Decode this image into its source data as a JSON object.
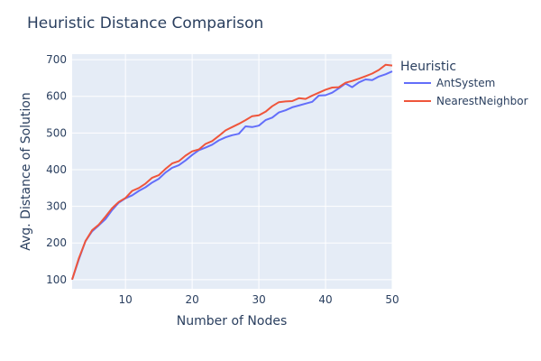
{
  "chart_data": {
    "type": "line",
    "title": "Heuristic Distance Comparison",
    "xlabel": "Number of Nodes",
    "ylabel": "Avg. Distance of Solution",
    "xlim": [
      2,
      50
    ],
    "ylim": [
      75,
      715
    ],
    "x_ticks": [
      10,
      20,
      30,
      40,
      50
    ],
    "y_ticks": [
      100,
      200,
      300,
      400,
      500,
      600,
      700
    ],
    "grid": true,
    "legend_title": "Heuristic",
    "legend_position": "right",
    "x": [
      2,
      3,
      4,
      5,
      6,
      7,
      8,
      9,
      10,
      11,
      12,
      13,
      14,
      15,
      16,
      17,
      18,
      19,
      20,
      21,
      22,
      23,
      24,
      25,
      26,
      27,
      28,
      29,
      30,
      31,
      32,
      33,
      34,
      35,
      36,
      37,
      38,
      39,
      40,
      41,
      42,
      43,
      44,
      45,
      46,
      47,
      48,
      49,
      50
    ],
    "series": [
      {
        "name": "AntSystem",
        "color": "#636efa",
        "values": [
          100,
          155,
          205,
          232,
          248,
          265,
          290,
          310,
          322,
          330,
          342,
          352,
          365,
          375,
          392,
          405,
          412,
          425,
          440,
          453,
          460,
          468,
          480,
          488,
          494,
          498,
          518,
          516,
          520,
          535,
          542,
          556,
          562,
          570,
          575,
          580,
          585,
          602,
          603,
          610,
          622,
          635,
          625,
          638,
          646,
          644,
          654,
          660,
          668
        ]
      },
      {
        "name": "NearestNeighbor",
        "color": "#ef553b",
        "values": [
          100,
          158,
          205,
          235,
          250,
          272,
          295,
          312,
          323,
          342,
          350,
          362,
          378,
          385,
          402,
          417,
          423,
          438,
          450,
          455,
          470,
          478,
          492,
          507,
          516,
          525,
          535,
          546,
          548,
          558,
          573,
          584,
          586,
          587,
          595,
          593,
          602,
          610,
          618,
          624,
          625,
          637,
          642,
          648,
          655,
          662,
          672,
          686,
          684
        ]
      }
    ]
  }
}
